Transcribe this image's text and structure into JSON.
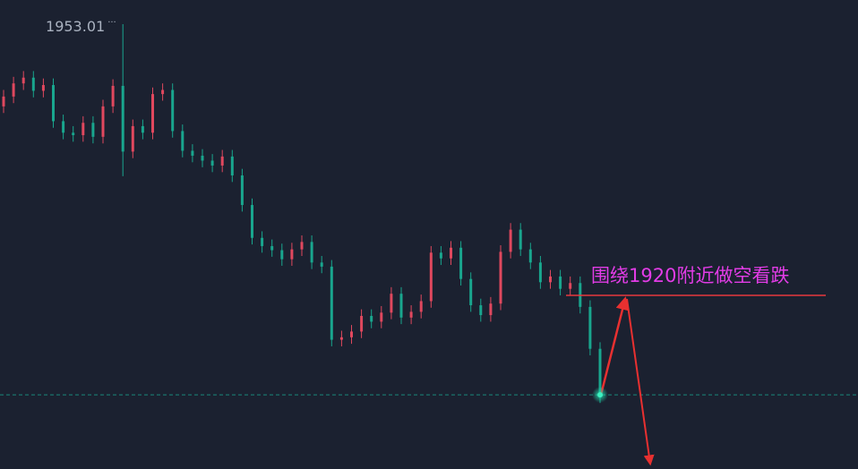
{
  "chart_data": {
    "type": "candlestick",
    "ylim": [
      1898.87,
      1955.95
    ],
    "up_color": "#e0485e",
    "down_color": "#19a68e",
    "open": [
      1943.0,
      1944.2,
      1945.8,
      1946.5,
      1944.9,
      1945.6,
      1941.2,
      1939.8,
      1939.5,
      1941.0,
      1939.3,
      1943.0,
      1945.5,
      1937.5,
      1940.6,
      1939.8,
      1944.5,
      1945.0,
      1940.0,
      1937.6,
      1937.0,
      1936.4,
      1935.8,
      1936.9,
      1934.6,
      1931.0,
      1927.0,
      1926.0,
      1925.5,
      1924.4,
      1925.6,
      1926.5,
      1924.0,
      1923.5,
      1914.6,
      1914.9,
      1915.6,
      1917.5,
      1916.8,
      1917.9,
      1920.2,
      1917.3,
      1918.0,
      1919.3,
      1925.2,
      1924.5,
      1925.8,
      1922.0,
      1918.8,
      1917.6,
      1919.0,
      1925.3,
      1928.0,
      1925.6,
      1924.0,
      1921.6,
      1922.3,
      1920.8,
      1921.5,
      1918.6,
      1913.5
    ],
    "high": [
      1945.0,
      1946.6,
      1947.3,
      1947.3,
      1946.4,
      1946.4,
      1942.0,
      1940.6,
      1941.8,
      1941.8,
      1943.8,
      1946.3,
      1953.01,
      1941.4,
      1941.4,
      1945.3,
      1945.8,
      1945.8,
      1940.8,
      1938.4,
      1937.8,
      1937.2,
      1937.7,
      1937.7,
      1935.4,
      1931.8,
      1927.8,
      1926.8,
      1926.3,
      1926.4,
      1927.3,
      1927.3,
      1924.8,
      1924.3,
      1915.7,
      1916.4,
      1918.3,
      1918.3,
      1918.7,
      1921.0,
      1921.0,
      1918.8,
      1920.1,
      1926.0,
      1926.0,
      1926.6,
      1926.6,
      1922.8,
      1919.6,
      1919.8,
      1926.1,
      1928.8,
      1928.8,
      1926.4,
      1924.8,
      1923.1,
      1923.1,
      1922.3,
      1922.3,
      1919.4,
      1914.3
    ],
    "low": [
      1942.2,
      1943.4,
      1945.0,
      1944.1,
      1944.1,
      1940.4,
      1939.0,
      1938.7,
      1938.7,
      1938.5,
      1938.5,
      1942.2,
      1934.5,
      1936.7,
      1939.0,
      1939.0,
      1943.7,
      1939.2,
      1936.8,
      1936.2,
      1935.6,
      1935.0,
      1935.0,
      1933.8,
      1930.2,
      1926.2,
      1925.2,
      1924.7,
      1923.6,
      1923.6,
      1924.8,
      1923.2,
      1922.7,
      1913.8,
      1913.8,
      1914.1,
      1914.8,
      1916.0,
      1916.0,
      1917.1,
      1916.5,
      1916.5,
      1917.2,
      1918.5,
      1923.7,
      1923.7,
      1921.2,
      1918.0,
      1916.8,
      1916.8,
      1918.2,
      1924.5,
      1924.8,
      1923.2,
      1920.8,
      1920.8,
      1920.0,
      1920.0,
      1917.8,
      1912.7,
      1906.9
    ],
    "close": [
      1944.2,
      1945.8,
      1946.5,
      1944.9,
      1945.6,
      1941.2,
      1939.8,
      1939.5,
      1941.0,
      1939.3,
      1943.0,
      1945.5,
      1937.5,
      1940.6,
      1939.8,
      1944.5,
      1945.0,
      1940.0,
      1937.6,
      1937.0,
      1936.4,
      1935.8,
      1936.9,
      1934.6,
      1931.0,
      1927.0,
      1926.0,
      1925.5,
      1924.4,
      1925.6,
      1926.5,
      1924.0,
      1923.5,
      1914.6,
      1914.9,
      1915.6,
      1917.5,
      1916.8,
      1917.9,
      1920.2,
      1917.3,
      1918.0,
      1919.3,
      1925.2,
      1924.5,
      1925.8,
      1922.0,
      1918.8,
      1917.6,
      1919.0,
      1925.3,
      1928.0,
      1925.6,
      1924.0,
      1921.6,
      1922.3,
      1920.8,
      1921.5,
      1918.6,
      1913.5,
      1907.9
    ],
    "annotation": {
      "text": "围绕1920附近做空看跌",
      "level": 1920,
      "color": "#e23ce6",
      "line_color": "#e8383d"
    }
  }
}
